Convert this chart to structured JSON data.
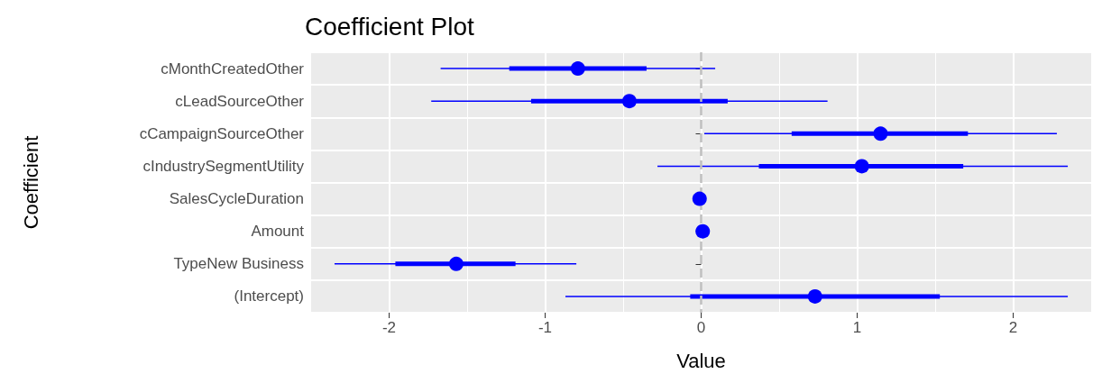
{
  "chart_data": {
    "type": "scatter",
    "orientation": "horizontal",
    "title": "Coefficient Plot",
    "xlabel": "Value",
    "ylabel": "Coefficient",
    "categories": [
      "cMonthCreatedOther",
      "cLeadSourceOther",
      "cCampaignSourceOther",
      "cIndustrySegmentUtility",
      "SalesCycleDuration",
      "Amount",
      "TypeNew Business",
      "(Intercept)"
    ],
    "series": [
      {
        "type": "bar",
        "color": "#0000ff",
        "base": [
          -1.23,
          -1.09,
          0.58,
          0.37,
          null,
          null,
          -1.96,
          -0.07
        ],
        "values": [
          0.88,
          1.26,
          1.13,
          1.31,
          null,
          null,
          0.77,
          1.6
        ]
      },
      {
        "color": "#0000ff",
        "values": [
          -0.79,
          -0.46,
          1.15,
          1.03,
          -0.01,
          0.01,
          -1.57,
          0.73
        ],
        "errors": [
          [
            -1.67,
            0.09
          ],
          [
            -1.73,
            0.81
          ],
          [
            0.02,
            2.28
          ],
          [
            -0.28,
            2.35
          ],
          null,
          null,
          [
            -2.35,
            -0.8
          ],
          [
            -0.87,
            2.35
          ]
        ]
      }
    ],
    "xlim": [
      -2.5,
      2.5
    ],
    "xticks": [
      -2,
      -1,
      0,
      1,
      2
    ],
    "grid": true,
    "marker": "circle",
    "ref_lines": [
      {
        "axis": "x",
        "value": 0,
        "color": "#bebebe",
        "line_style": "dashed"
      }
    ]
  }
}
